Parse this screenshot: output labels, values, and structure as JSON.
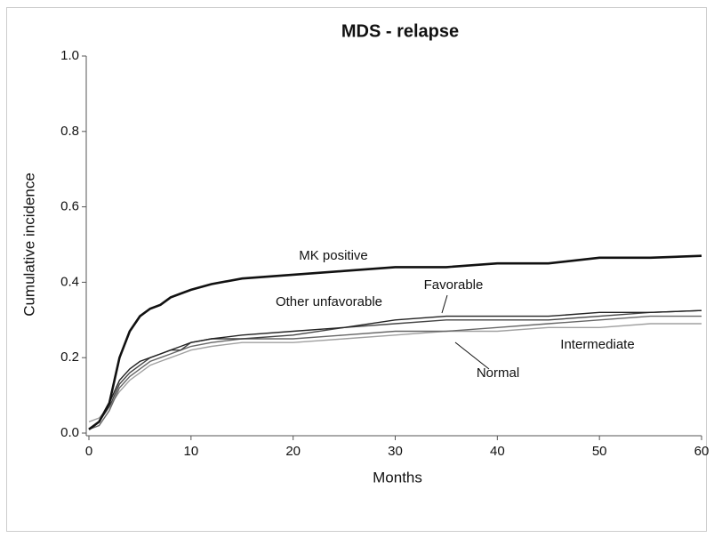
{
  "chart_data": {
    "type": "line",
    "title": "MDS - relapse",
    "x_label": "Months",
    "y_label": "Cumulative incidence",
    "x": [
      0,
      1,
      2,
      3,
      4,
      5,
      6,
      7,
      8,
      9,
      10,
      12,
      15,
      20,
      25,
      30,
      35,
      40,
      45,
      50,
      55,
      60
    ],
    "series": [
      {
        "name": "MK positive",
        "color": "#111111",
        "values": [
          0.01,
          0.03,
          0.08,
          0.2,
          0.27,
          0.31,
          0.33,
          0.34,
          0.36,
          0.37,
          0.38,
          0.395,
          0.41,
          0.42,
          0.43,
          0.44,
          0.44,
          0.45,
          0.45,
          0.465,
          0.465,
          0.47
        ]
      },
      {
        "name": "Other unfavorable",
        "color": "#222222",
        "values": [
          0.01,
          0.03,
          0.08,
          0.14,
          0.17,
          0.19,
          0.2,
          0.21,
          0.22,
          0.23,
          0.24,
          0.25,
          0.26,
          0.27,
          0.28,
          0.3,
          0.31,
          0.31,
          0.31,
          0.32,
          0.32,
          0.325
        ]
      },
      {
        "name": "Favorable",
        "color": "#444444",
        "values": [
          0.01,
          0.03,
          0.07,
          0.13,
          0.16,
          0.18,
          0.2,
          0.21,
          0.22,
          0.22,
          0.24,
          0.25,
          0.25,
          0.26,
          0.28,
          0.29,
          0.3,
          0.3,
          0.3,
          0.31,
          0.32,
          0.325
        ]
      },
      {
        "name": "Normal",
        "color": "#666666",
        "values": [
          0.01,
          0.02,
          0.06,
          0.12,
          0.15,
          0.17,
          0.19,
          0.2,
          0.21,
          0.22,
          0.23,
          0.24,
          0.25,
          0.25,
          0.26,
          0.27,
          0.27,
          0.28,
          0.29,
          0.3,
          0.31,
          0.31
        ]
      },
      {
        "name": "Intermediate",
        "color": "#a0a0a0",
        "values": [
          0.03,
          0.04,
          0.07,
          0.11,
          0.14,
          0.16,
          0.18,
          0.19,
          0.2,
          0.21,
          0.22,
          0.23,
          0.24,
          0.24,
          0.25,
          0.26,
          0.27,
          0.27,
          0.28,
          0.28,
          0.29,
          0.29
        ]
      }
    ],
    "xlim": [
      0,
      60
    ],
    "xticks": [
      0,
      10,
      20,
      30,
      40,
      50,
      60
    ],
    "ylim": [
      0,
      1
    ],
    "yticks": [
      {
        "value": 0,
        "label": "0.0"
      },
      0.2,
      0.4,
      0.6,
      0.8,
      {
        "value": 1,
        "label": "1.0"
      }
    ]
  }
}
